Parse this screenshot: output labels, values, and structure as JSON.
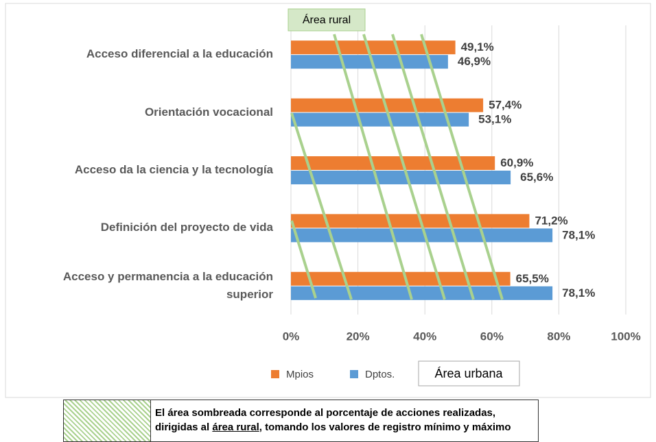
{
  "chart_data": {
    "type": "bar",
    "orientation": "horizontal",
    "categories": [
      "Acceso diferencial a la educación",
      "Orientación vocacional",
      "Acceso da la ciencia y la tecnología",
      "Definición del proyecto de vida",
      "Acceso y permanencia a la educación superior"
    ],
    "series": [
      {
        "name": "Mpios",
        "color": "#ed7d31",
        "values": [
          49.1,
          57.4,
          60.9,
          71.2,
          65.5
        ],
        "value_labels": [
          "49,1%",
          "57,4%",
          "60,9%",
          "71,2%",
          "65,5%"
        ]
      },
      {
        "name": "Dptos.",
        "color": "#5b9bd5",
        "values": [
          46.9,
          53.1,
          65.6,
          78.1,
          78.1
        ],
        "value_labels": [
          "46,9%",
          "53,1%",
          "65,6%",
          "78,1%",
          "78,1%"
        ]
      }
    ],
    "xlim": [
      0,
      100
    ],
    "xticks": [
      {
        "value": 0,
        "label": "0%"
      },
      {
        "value": 20,
        "label": "20%"
      },
      {
        "value": 40,
        "label": "40%"
      },
      {
        "value": 60,
        "label": "60%"
      },
      {
        "value": 80,
        "label": "80%"
      },
      {
        "value": 100,
        "label": "100%"
      }
    ],
    "grid": true,
    "legend": "bottom",
    "annotations": {
      "rural": "Área rural",
      "urban": "Área urbana"
    },
    "note": {
      "line1": "El área sombreada corresponde al porcentaje de acciones realizadas,",
      "line2_before": "dirigidas al ",
      "line2_link": "área rural",
      "line2_after": ", tomando los valores de registro mínimo y máximo"
    }
  }
}
